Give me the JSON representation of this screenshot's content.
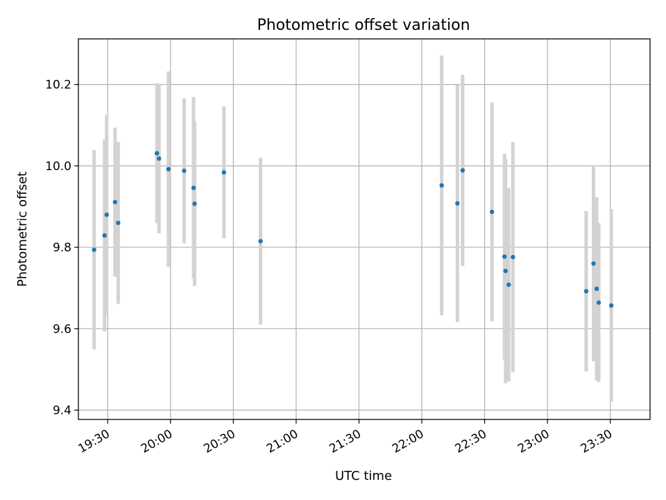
{
  "chart_data": {
    "type": "scatter",
    "title": "Photometric offset variation",
    "xlabel": "UTC time",
    "ylabel": "Photometric offset",
    "x_type": "time",
    "xlim": [
      "19:16",
      "23:49"
    ],
    "ylim": [
      9.377,
      10.312
    ],
    "x_ticks": [
      "19:30",
      "20:00",
      "20:30",
      "21:00",
      "21:30",
      "22:00",
      "22:30",
      "23:00",
      "23:30"
    ],
    "y_ticks": [
      9.4,
      9.6,
      9.8,
      10.0,
      10.2
    ],
    "y_tick_labels": [
      "9.4",
      "9.6",
      "9.8",
      "10.0",
      "10.2"
    ],
    "grid": true,
    "point_color": "#1f77b4",
    "errorbar_color": "#d3d3d3",
    "points": [
      {
        "t": "19:23:30",
        "y": 9.794,
        "err": 0.245
      },
      {
        "t": "19:28:30",
        "y": 9.829,
        "err": 0.236
      },
      {
        "t": "19:29:30",
        "y": 9.88,
        "err": 0.246
      },
      {
        "t": "19:33:30",
        "y": 9.911,
        "err": 0.183
      },
      {
        "t": "19:35:00",
        "y": 9.86,
        "err": 0.199
      },
      {
        "t": "19:53:30",
        "y": 10.031,
        "err": 0.172
      },
      {
        "t": "19:54:30",
        "y": 10.018,
        "err": 0.184
      },
      {
        "t": "19:59:00",
        "y": 9.992,
        "err": 0.24
      },
      {
        "t": "20:06:30",
        "y": 9.988,
        "err": 0.178
      },
      {
        "t": "20:11:00",
        "y": 9.946,
        "err": 0.223
      },
      {
        "t": "20:11:30",
        "y": 9.907,
        "err": 0.202
      },
      {
        "t": "20:25:30",
        "y": 9.984,
        "err": 0.162
      },
      {
        "t": "20:43:00",
        "y": 9.815,
        "err": 0.205
      },
      {
        "t": "22:09:30",
        "y": 9.952,
        "err": 0.319
      },
      {
        "t": "22:17:00",
        "y": 9.908,
        "err": 0.292
      },
      {
        "t": "22:19:30",
        "y": 9.989,
        "err": 0.235
      },
      {
        "t": "22:33:30",
        "y": 9.887,
        "err": 0.269
      },
      {
        "t": "22:39:30",
        "y": 9.777,
        "err": 0.253
      },
      {
        "t": "22:40:00",
        "y": 9.742,
        "err": 0.276
      },
      {
        "t": "22:41:30",
        "y": 9.708,
        "err": 0.238
      },
      {
        "t": "22:43:30",
        "y": 9.776,
        "err": 0.283
      },
      {
        "t": "23:18:30",
        "y": 9.692,
        "err": 0.197
      },
      {
        "t": "23:22:00",
        "y": 9.76,
        "err": 0.24
      },
      {
        "t": "23:23:30",
        "y": 9.698,
        "err": 0.225
      },
      {
        "t": "23:24:30",
        "y": 9.664,
        "err": 0.195
      },
      {
        "t": "23:30:30",
        "y": 9.657,
        "err": 0.237
      }
    ]
  }
}
